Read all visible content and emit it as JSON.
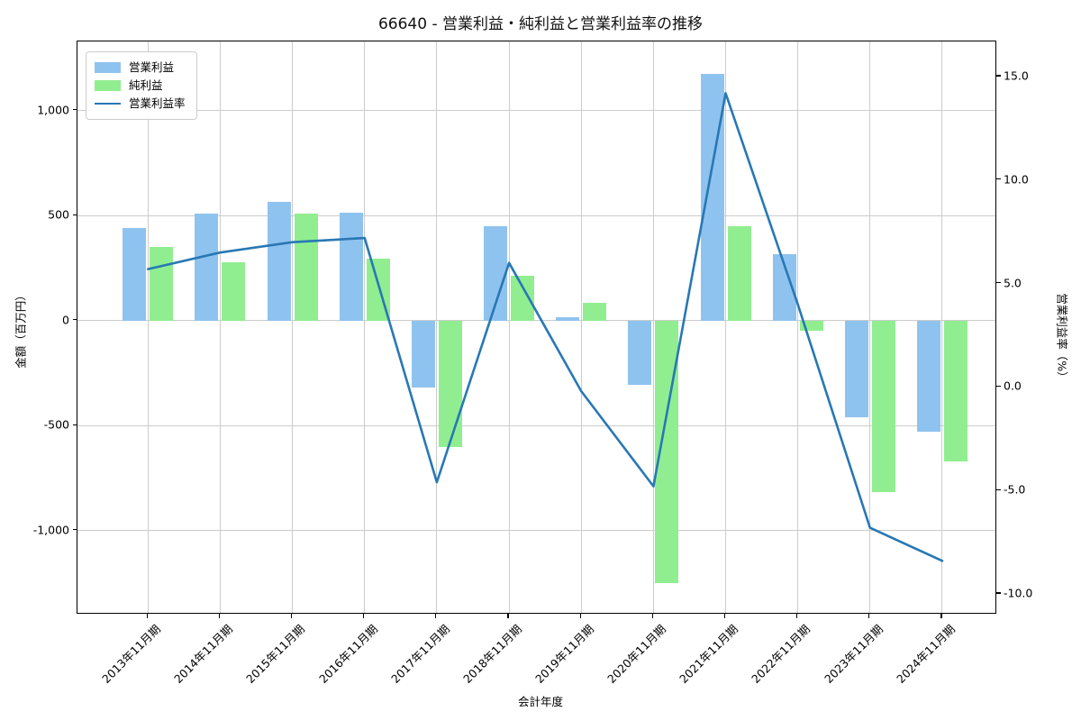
{
  "chart_data": {
    "type": "bar",
    "title": "66640 - 営業利益・純利益と営業利益率の推移",
    "xlabel": "会計年度",
    "ylabel_left": "金額（百万円）",
    "ylabel_right": "営業利益率（%）",
    "categories": [
      "2013年11月期",
      "2014年11月期",
      "2015年11月期",
      "2016年11月期",
      "2017年11月期",
      "2018年11月期",
      "2019年11月期",
      "2020年11月期",
      "2021年11月期",
      "2022年11月期",
      "2023年11月期",
      "2024年11月期"
    ],
    "series": [
      {
        "name": "営業利益",
        "kind": "bar",
        "axis": "left",
        "color": "#8FC3EF",
        "values": [
          440,
          510,
          565,
          515,
          -320,
          450,
          15,
          -305,
          1175,
          315,
          -460,
          -530
        ]
      },
      {
        "name": "純利益",
        "kind": "bar",
        "axis": "left",
        "color": "#90EE90",
        "values": [
          350,
          278,
          510,
          295,
          -600,
          215,
          85,
          -1250,
          450,
          -50,
          -815,
          -670
        ]
      },
      {
        "name": "営業利益率",
        "kind": "line",
        "axis": "right",
        "color": "#2878B4",
        "values": [
          5.7,
          6.5,
          7.0,
          7.2,
          -4.6,
          6.0,
          -0.2,
          -4.8,
          14.2,
          4.0,
          -6.8,
          -8.4
        ]
      }
    ],
    "left_axis": {
      "range": [
        -1400,
        1330
      ],
      "ticks": [
        1000,
        500,
        0,
        -500,
        -1000
      ],
      "tick_labels": [
        "1,000",
        "500",
        "0",
        "-500",
        "-1,000"
      ]
    },
    "right_axis": {
      "range": [
        -11.0,
        16.7
      ],
      "ticks": [
        15.0,
        10.0,
        5.0,
        0.0,
        -5.0,
        -10.0
      ],
      "tick_labels": [
        "15.0",
        "10.0",
        "5.0",
        "0.0",
        "-5.0",
        "-10.0"
      ]
    },
    "grid": true,
    "legend": {
      "position": "upper-left"
    }
  }
}
